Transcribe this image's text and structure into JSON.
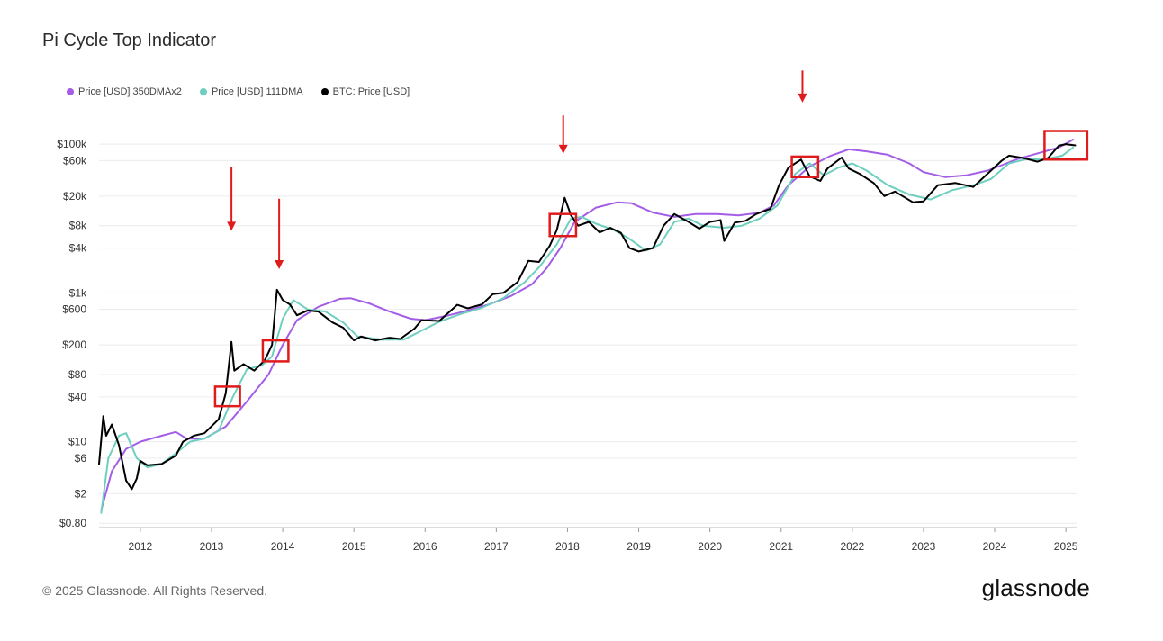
{
  "title": "Pi Cycle Top Indicator",
  "footer": "© 2025 Glassnode. All Rights Reserved.",
  "logo_text": "glassnode",
  "chart_data": {
    "type": "line",
    "title": "Pi Cycle Top Indicator",
    "y_scale": "log",
    "ylim": [
      0.7,
      140000
    ],
    "xlim": [
      2011.42,
      2025.15
    ],
    "grid": "horizontal",
    "legend_position": "top-left",
    "y_ticks": [
      {
        "label": "$100k",
        "value": 100000
      },
      {
        "label": "$60k",
        "value": 60000
      },
      {
        "label": "$20k",
        "value": 20000
      },
      {
        "label": "$8k",
        "value": 8000
      },
      {
        "label": "$4k",
        "value": 4000
      },
      {
        "label": "$1k",
        "value": 1000
      },
      {
        "label": "$600",
        "value": 600
      },
      {
        "label": "$200",
        "value": 200
      },
      {
        "label": "$80",
        "value": 80
      },
      {
        "label": "$40",
        "value": 40
      },
      {
        "label": "$10",
        "value": 10
      },
      {
        "label": "$6",
        "value": 6
      },
      {
        "label": "$2",
        "value": 2
      },
      {
        "label": "$0.80",
        "value": 0.8
      }
    ],
    "x_ticks": [
      "2012",
      "2013",
      "2014",
      "2015",
      "2016",
      "2017",
      "2018",
      "2019",
      "2020",
      "2021",
      "2022",
      "2023",
      "2024",
      "2025"
    ],
    "series": [
      {
        "name": "Price [USD] 350DMAx2",
        "color": "#a35de6",
        "points": [
          [
            2011.45,
            1.2
          ],
          [
            2011.6,
            4
          ],
          [
            2011.8,
            8
          ],
          [
            2012.0,
            10
          ],
          [
            2012.3,
            12
          ],
          [
            2012.5,
            13.5
          ],
          [
            2012.65,
            11
          ],
          [
            2012.9,
            11
          ],
          [
            2013.2,
            16
          ],
          [
            2013.5,
            35
          ],
          [
            2013.8,
            80
          ],
          [
            2014.0,
            200
          ],
          [
            2014.2,
            430
          ],
          [
            2014.5,
            650
          ],
          [
            2014.8,
            830
          ],
          [
            2014.95,
            850
          ],
          [
            2015.2,
            730
          ],
          [
            2015.5,
            560
          ],
          [
            2015.8,
            450
          ],
          [
            2016.0,
            430
          ],
          [
            2016.3,
            490
          ],
          [
            2016.6,
            580
          ],
          [
            2016.9,
            700
          ],
          [
            2017.2,
            900
          ],
          [
            2017.5,
            1300
          ],
          [
            2017.7,
            2100
          ],
          [
            2017.9,
            4000
          ],
          [
            2018.1,
            9000
          ],
          [
            2018.4,
            14000
          ],
          [
            2018.7,
            16500
          ],
          [
            2018.9,
            16000
          ],
          [
            2019.2,
            12000
          ],
          [
            2019.5,
            10500
          ],
          [
            2019.8,
            11500
          ],
          [
            2020.1,
            11500
          ],
          [
            2020.4,
            11000
          ],
          [
            2020.7,
            12000
          ],
          [
            2020.9,
            15000
          ],
          [
            2021.1,
            28000
          ],
          [
            2021.4,
            50000
          ],
          [
            2021.7,
            70000
          ],
          [
            2021.95,
            85000
          ],
          [
            2022.2,
            80000
          ],
          [
            2022.5,
            72000
          ],
          [
            2022.8,
            55000
          ],
          [
            2023.0,
            42000
          ],
          [
            2023.3,
            36000
          ],
          [
            2023.6,
            38000
          ],
          [
            2023.9,
            44000
          ],
          [
            2024.1,
            52000
          ],
          [
            2024.3,
            62000
          ],
          [
            2024.6,
            75000
          ],
          [
            2024.9,
            90000
          ],
          [
            2025.1,
            115000
          ]
        ]
      },
      {
        "name": "Price [USD] 111DMA",
        "color": "#6fcfbf",
        "points": [
          [
            2011.45,
            1.1
          ],
          [
            2011.55,
            6
          ],
          [
            2011.7,
            12
          ],
          [
            2011.8,
            13
          ],
          [
            2011.95,
            6
          ],
          [
            2012.1,
            4.5
          ],
          [
            2012.3,
            5
          ],
          [
            2012.5,
            7
          ],
          [
            2012.7,
            10
          ],
          [
            2012.9,
            11
          ],
          [
            2013.1,
            14
          ],
          [
            2013.3,
            40
          ],
          [
            2013.5,
            95
          ],
          [
            2013.7,
            105
          ],
          [
            2013.85,
            140
          ],
          [
            2014.0,
            450
          ],
          [
            2014.15,
            800
          ],
          [
            2014.35,
            600
          ],
          [
            2014.6,
            560
          ],
          [
            2014.85,
            400
          ],
          [
            2015.05,
            260
          ],
          [
            2015.4,
            235
          ],
          [
            2015.7,
            235
          ],
          [
            2015.95,
            310
          ],
          [
            2016.2,
            410
          ],
          [
            2016.5,
            520
          ],
          [
            2016.8,
            630
          ],
          [
            2017.1,
            850
          ],
          [
            2017.4,
            1400
          ],
          [
            2017.6,
            2200
          ],
          [
            2017.85,
            4500
          ],
          [
            2018.05,
            10000
          ],
          [
            2018.2,
            10500
          ],
          [
            2018.4,
            8500
          ],
          [
            2018.65,
            7000
          ],
          [
            2018.85,
            5500
          ],
          [
            2019.1,
            3700
          ],
          [
            2019.3,
            4500
          ],
          [
            2019.5,
            9000
          ],
          [
            2019.7,
            10000
          ],
          [
            2019.9,
            8000
          ],
          [
            2020.2,
            7500
          ],
          [
            2020.45,
            8000
          ],
          [
            2020.7,
            10000
          ],
          [
            2020.95,
            15000
          ],
          [
            2021.2,
            40000
          ],
          [
            2021.4,
            55000
          ],
          [
            2021.6,
            38000
          ],
          [
            2021.8,
            48000
          ],
          [
            2022.0,
            55000
          ],
          [
            2022.2,
            44000
          ],
          [
            2022.5,
            28000
          ],
          [
            2022.8,
            21000
          ],
          [
            2023.1,
            18000
          ],
          [
            2023.4,
            24000
          ],
          [
            2023.7,
            28000
          ],
          [
            2023.95,
            34000
          ],
          [
            2024.2,
            55000
          ],
          [
            2024.45,
            63000
          ],
          [
            2024.7,
            62000
          ],
          [
            2024.95,
            70000
          ],
          [
            2025.1,
            90000
          ]
        ]
      },
      {
        "name": "BTC: Price [USD]",
        "color": "#000000",
        "points": [
          [
            2011.42,
            5
          ],
          [
            2011.48,
            22
          ],
          [
            2011.52,
            12
          ],
          [
            2011.6,
            17
          ],
          [
            2011.7,
            9
          ],
          [
            2011.8,
            3
          ],
          [
            2011.88,
            2.3
          ],
          [
            2011.95,
            3.2
          ],
          [
            2012.0,
            5.5
          ],
          [
            2012.1,
            4.8
          ],
          [
            2012.3,
            5
          ],
          [
            2012.5,
            6.5
          ],
          [
            2012.6,
            10
          ],
          [
            2012.75,
            12
          ],
          [
            2012.9,
            13
          ],
          [
            2013.1,
            20
          ],
          [
            2013.2,
            45
          ],
          [
            2013.28,
            220
          ],
          [
            2013.32,
            90
          ],
          [
            2013.45,
            110
          ],
          [
            2013.6,
            90
          ],
          [
            2013.75,
            125
          ],
          [
            2013.85,
            200
          ],
          [
            2013.92,
            1100
          ],
          [
            2014.0,
            800
          ],
          [
            2014.1,
            700
          ],
          [
            2014.2,
            500
          ],
          [
            2014.35,
            580
          ],
          [
            2014.5,
            560
          ],
          [
            2014.7,
            400
          ],
          [
            2014.85,
            340
          ],
          [
            2015.0,
            230
          ],
          [
            2015.1,
            260
          ],
          [
            2015.3,
            230
          ],
          [
            2015.5,
            250
          ],
          [
            2015.65,
            240
          ],
          [
            2015.85,
            330
          ],
          [
            2015.95,
            430
          ],
          [
            2016.2,
            420
          ],
          [
            2016.45,
            690
          ],
          [
            2016.6,
            620
          ],
          [
            2016.8,
            700
          ],
          [
            2016.95,
            960
          ],
          [
            2017.1,
            1000
          ],
          [
            2017.3,
            1400
          ],
          [
            2017.45,
            2700
          ],
          [
            2017.6,
            2600
          ],
          [
            2017.75,
            4300
          ],
          [
            2017.85,
            7000
          ],
          [
            2017.96,
            19000
          ],
          [
            2018.05,
            11000
          ],
          [
            2018.15,
            8000
          ],
          [
            2018.3,
            9000
          ],
          [
            2018.45,
            6500
          ],
          [
            2018.6,
            7500
          ],
          [
            2018.75,
            6400
          ],
          [
            2018.87,
            4000
          ],
          [
            2019.0,
            3600
          ],
          [
            2019.2,
            4000
          ],
          [
            2019.35,
            8000
          ],
          [
            2019.5,
            11500
          ],
          [
            2019.7,
            9000
          ],
          [
            2019.85,
            7300
          ],
          [
            2020.0,
            9000
          ],
          [
            2020.15,
            9500
          ],
          [
            2020.2,
            5000
          ],
          [
            2020.35,
            8800
          ],
          [
            2020.5,
            9300
          ],
          [
            2020.65,
            11500
          ],
          [
            2020.85,
            13500
          ],
          [
            2020.97,
            28000
          ],
          [
            2021.1,
            48000
          ],
          [
            2021.28,
            62000
          ],
          [
            2021.4,
            37000
          ],
          [
            2021.55,
            32000
          ],
          [
            2021.65,
            47000
          ],
          [
            2021.85,
            66000
          ],
          [
            2021.95,
            47000
          ],
          [
            2022.1,
            40000
          ],
          [
            2022.3,
            30000
          ],
          [
            2022.45,
            20000
          ],
          [
            2022.6,
            23000
          ],
          [
            2022.85,
            16500
          ],
          [
            2023.0,
            17000
          ],
          [
            2023.2,
            28000
          ],
          [
            2023.45,
            30000
          ],
          [
            2023.7,
            26500
          ],
          [
            2023.9,
            40000
          ],
          [
            2024.1,
            60000
          ],
          [
            2024.2,
            70000
          ],
          [
            2024.4,
            65000
          ],
          [
            2024.6,
            58000
          ],
          [
            2024.75,
            65000
          ],
          [
            2024.9,
            95000
          ],
          [
            2025.0,
            100000
          ],
          [
            2025.13,
            96000
          ]
        ]
      }
    ],
    "highlight_boxes": [
      {
        "x0": 2013.05,
        "x1": 2013.4,
        "y0": 30,
        "y1": 55
      },
      {
        "x0": 2013.72,
        "x1": 2014.08,
        "y0": 120,
        "y1": 230
      },
      {
        "x0": 2017.75,
        "x1": 2018.12,
        "y0": 5800,
        "y1": 11500
      },
      {
        "x0": 2021.15,
        "x1": 2021.52,
        "y0": 36000,
        "y1": 68000
      },
      {
        "x0": 2024.7,
        "x1": 2025.3,
        "y0": 62000,
        "y1": 150000
      }
    ],
    "arrows": [
      {
        "x": 2013.28,
        "y_top": 0.26,
        "y_tip": 0.36
      },
      {
        "x": 2013.95,
        "y_top": 0.31,
        "y_tip": 0.42
      },
      {
        "x": 2017.94,
        "y_top": 0.18,
        "y_tip": 0.24
      },
      {
        "x": 2021.3,
        "y_top": 0.11,
        "y_tip": 0.16
      }
    ]
  }
}
